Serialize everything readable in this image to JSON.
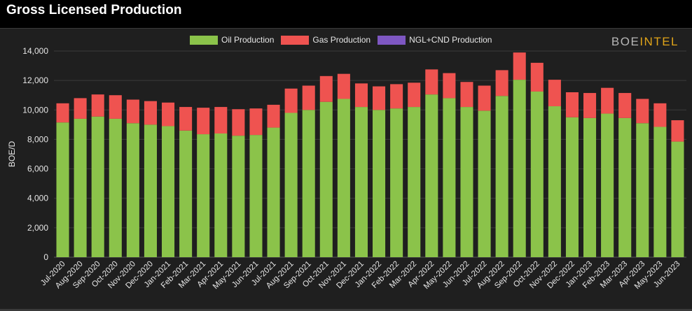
{
  "title": "Gross Licensed Production",
  "watermark": {
    "part1": "BOE",
    "part2": "INTEL"
  },
  "colors": {
    "oil": "#8bc34a",
    "gas": "#ef5350",
    "ngl": "#7e57c2"
  },
  "chart_data": {
    "type": "bar",
    "stacked": true,
    "ylabel": "BOE/D",
    "xlabel": "",
    "ylim": [
      0,
      14000
    ],
    "yticks": [
      "0",
      "2,000",
      "4,000",
      "6,000",
      "8,000",
      "10,000",
      "12,000",
      "14,000"
    ],
    "grid": true,
    "legend_position": "top-center",
    "categories": [
      "Jul-2020",
      "Aug-2020",
      "Sep-2020",
      "Oct-2020",
      "Nov-2020",
      "Dec-2020",
      "Jan-2021",
      "Feb-2021",
      "Mar-2021",
      "Apr-2021",
      "May-2021",
      "Jun-2021",
      "Jul-2021",
      "Aug-2021",
      "Sep-2021",
      "Oct-2021",
      "Nov-2021",
      "Dec-2021",
      "Jan-2022",
      "Feb-2022",
      "Mar-2022",
      "Apr-2022",
      "May-2022",
      "Jun-2022",
      "Jul-2022",
      "Aug-2022",
      "Sep-2022",
      "Oct-2022",
      "Nov-2022",
      "Dec-2022",
      "Jan-2023",
      "Feb-2023",
      "Mar-2023",
      "Apr-2023",
      "May-2023",
      "Jun-2023"
    ],
    "series": [
      {
        "name": "Oil Production",
        "values": [
          9150,
          9400,
          9550,
          9400,
          9100,
          9000,
          8900,
          8600,
          8350,
          8400,
          8250,
          8300,
          8800,
          9800,
          10000,
          10550,
          10750,
          10200,
          10000,
          10100,
          10200,
          11050,
          10800,
          10200,
          9950,
          10950,
          12050,
          11250,
          10250,
          9500,
          9450,
          9750,
          9450,
          9100,
          8850,
          7850
        ]
      },
      {
        "name": "Gas Production",
        "values": [
          1300,
          1400,
          1500,
          1600,
          1600,
          1600,
          1600,
          1600,
          1800,
          1800,
          1800,
          1800,
          1550,
          1650,
          1650,
          1750,
          1700,
          1600,
          1600,
          1650,
          1650,
          1700,
          1700,
          1700,
          1700,
          1750,
          1850,
          1950,
          1800,
          1700,
          1700,
          1750,
          1700,
          1650,
          1600,
          1450
        ]
      },
      {
        "name": "NGL+CND Production",
        "values": [
          0,
          0,
          0,
          0,
          0,
          0,
          0,
          0,
          0,
          0,
          0,
          0,
          0,
          0,
          0,
          0,
          0,
          0,
          0,
          0,
          0,
          0,
          0,
          0,
          0,
          0,
          0,
          0,
          0,
          0,
          0,
          0,
          0,
          0,
          0,
          0
        ]
      }
    ]
  }
}
